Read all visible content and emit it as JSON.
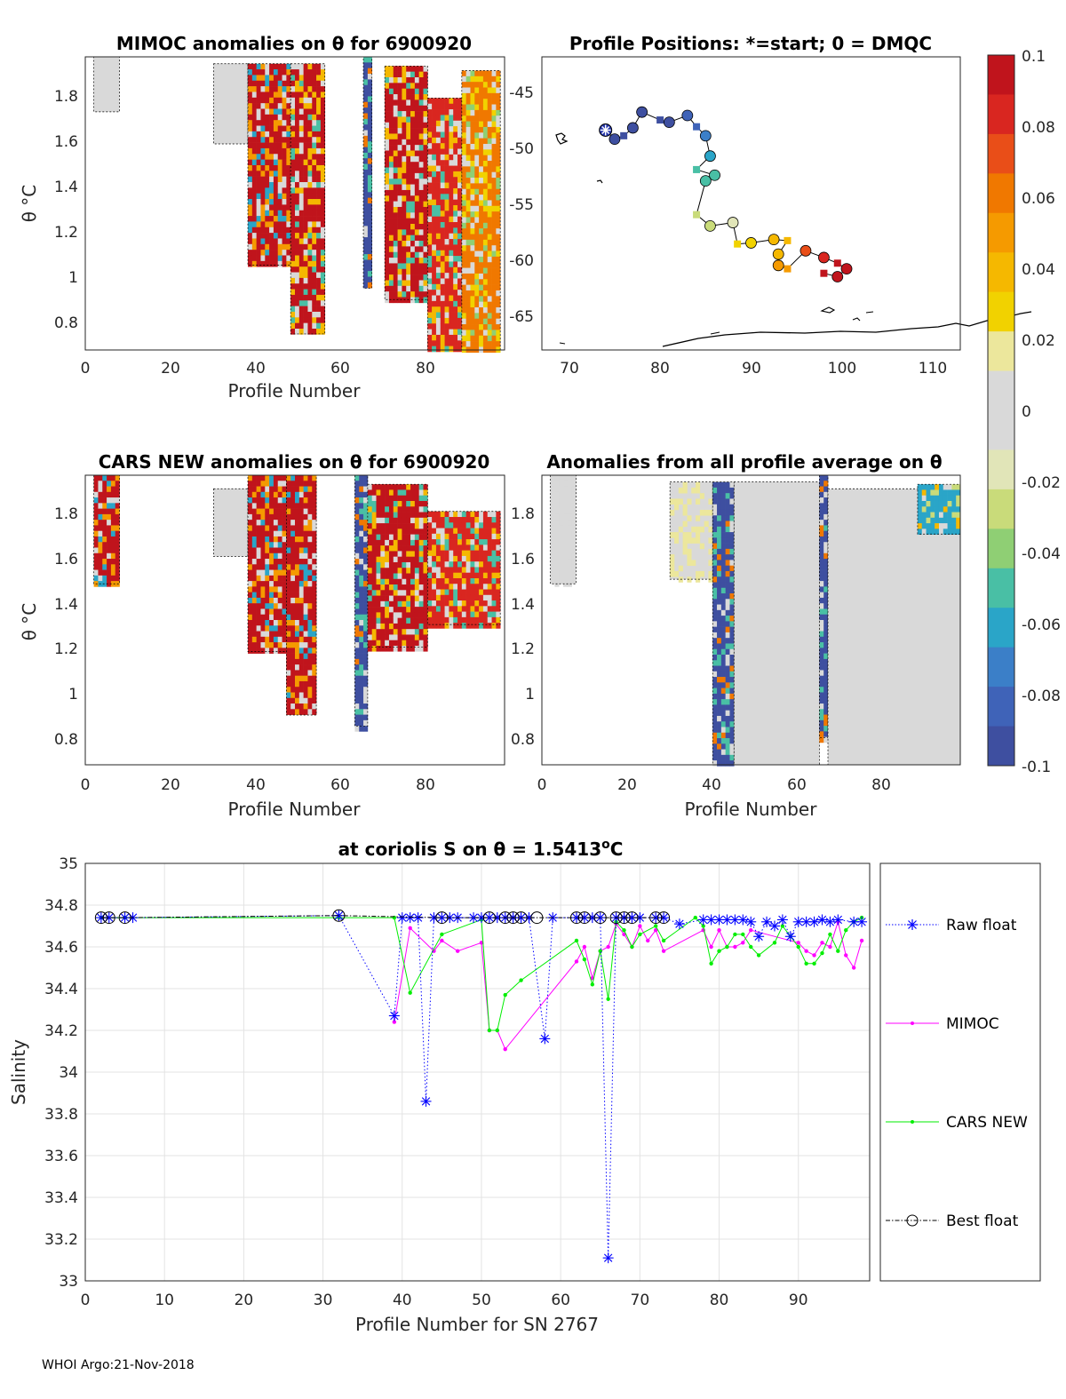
{
  "footer": "WHOI Argo:21-Nov-2018",
  "colorbar": {
    "ticks": [
      "0.1",
      "0.08",
      "0.06",
      "0.04",
      "0.02",
      "0",
      "-0.02",
      "-0.04",
      "-0.06",
      "-0.08",
      "-0.1"
    ],
    "colors": [
      "#3e4fa0",
      "#3f63b8",
      "#3b7fc8",
      "#2aa5c8",
      "#49bfa5",
      "#8fcf74",
      "#c9db7a",
      "#e1e5b8",
      "#d9d9d9",
      "#d9d9d9",
      "#ece79c",
      "#f1d200",
      "#f5b800",
      "#f59a00",
      "#f07800",
      "#e94e18",
      "#d92620",
      "#c0141c"
    ]
  },
  "panels": {
    "mimoc": {
      "title": "MIMOC anomalies on θ  for 6900920",
      "ylabel": "θ °C",
      "xlabel": "Profile Number",
      "xticks": [
        "0",
        "20",
        "40",
        "60",
        "80"
      ],
      "yticks": [
        "1.8",
        "1.6",
        "1.4",
        "1.2",
        "1",
        "0.8"
      ]
    },
    "positions": {
      "title": "Profile Positions: *=start; 0 = DMQC",
      "xticks": [
        "70",
        "80",
        "90",
        "100",
        "110"
      ],
      "yticks": [
        "-45",
        "-50",
        "-55",
        "-60",
        "-65"
      ]
    },
    "cars": {
      "title": "CARS NEW anomalies on θ for 6900920",
      "ylabel": "θ °C",
      "xlabel": "Profile Number",
      "xticks": [
        "0",
        "20",
        "40",
        "60",
        "80"
      ],
      "yticks": [
        "1.8",
        "1.6",
        "1.4",
        "1.2",
        "1",
        "0.8"
      ]
    },
    "allavg": {
      "title": "Anomalies from all profile average on θ",
      "xlabel": "Profile Number",
      "xticks": [
        "0",
        "20",
        "40",
        "60",
        "80"
      ],
      "yticks": [
        "1.8",
        "1.6",
        "1.4",
        "1.2",
        "1",
        "0.8"
      ]
    }
  },
  "chart_data": [
    {
      "type": "heatmap",
      "title": "MIMOC anomalies on θ  for 6900920",
      "xlabel": "Profile Number",
      "ylabel": "θ °C",
      "xlim": [
        0,
        98
      ],
      "ylim": [
        0.68,
        1.96
      ],
      "colorbar_range": [
        -0.1,
        0.1
      ],
      "bands": [
        {
          "x": [
            2,
            8
          ],
          "top": 1.96,
          "bottom": 1.72,
          "value": 0.0
        },
        {
          "x": [
            30,
            38
          ],
          "top": 1.93,
          "bottom": 1.58,
          "value": 0.0
        },
        {
          "x": [
            38,
            48
          ],
          "top": 1.93,
          "bottom": 1.05,
          "value": 0.1
        },
        {
          "x": [
            48,
            56
          ],
          "top": 1.93,
          "bottom": 0.75,
          "value": 0.09
        },
        {
          "x": [
            65,
            67
          ],
          "top": 1.96,
          "bottom": 0.95,
          "value": -0.1
        },
        {
          "x": [
            70,
            80
          ],
          "top": 1.92,
          "bottom": 0.9,
          "value": 0.09
        },
        {
          "x": [
            80,
            88
          ],
          "top": 1.78,
          "bottom": 0.68,
          "value": 0.08
        },
        {
          "x": [
            88,
            97
          ],
          "top": 1.9,
          "bottom": 0.68,
          "value": 0.06
        }
      ]
    },
    {
      "type": "scatter",
      "title": "Profile Positions: *=start; 0 = DMQC",
      "xlim": [
        67,
        113
      ],
      "ylim": [
        -68,
        -42
      ],
      "start": {
        "lon": 74,
        "lat": -48.5
      },
      "points": [
        {
          "lon": 74,
          "lat": -48.5,
          "v": -0.1
        },
        {
          "lon": 75,
          "lat": -49.3,
          "v": -0.1
        },
        {
          "lon": 76,
          "lat": -49.0,
          "v": -0.1
        },
        {
          "lon": 77,
          "lat": -48.3,
          "v": -0.09
        },
        {
          "lon": 78,
          "lat": -46.9,
          "v": -0.09
        },
        {
          "lon": 80,
          "lat": -47.6,
          "v": -0.09
        },
        {
          "lon": 81,
          "lat": -47.8,
          "v": -0.09
        },
        {
          "lon": 83,
          "lat": -47.2,
          "v": -0.08
        },
        {
          "lon": 84,
          "lat": -48.2,
          "v": -0.08
        },
        {
          "lon": 85,
          "lat": -49.0,
          "v": -0.07
        },
        {
          "lon": 85.5,
          "lat": -50.8,
          "v": -0.06
        },
        {
          "lon": 84,
          "lat": -52.0,
          "v": -0.05
        },
        {
          "lon": 86,
          "lat": -52.5,
          "v": -0.05
        },
        {
          "lon": 85,
          "lat": -53.0,
          "v": -0.05
        },
        {
          "lon": 84,
          "lat": -56.0,
          "v": -0.03
        },
        {
          "lon": 85.5,
          "lat": -57.0,
          "v": -0.025
        },
        {
          "lon": 88,
          "lat": -56.7,
          "v": -0.02
        },
        {
          "lon": 88.5,
          "lat": -58.6,
          "v": 0.03
        },
        {
          "lon": 90,
          "lat": -58.5,
          "v": 0.03
        },
        {
          "lon": 92.5,
          "lat": -58.2,
          "v": 0.04
        },
        {
          "lon": 94,
          "lat": -58.3,
          "v": 0.04
        },
        {
          "lon": 93,
          "lat": -59.5,
          "v": 0.04
        },
        {
          "lon": 93,
          "lat": -60.5,
          "v": 0.05
        },
        {
          "lon": 94,
          "lat": -60.8,
          "v": 0.05
        },
        {
          "lon": 96,
          "lat": -59.2,
          "v": 0.07
        },
        {
          "lon": 98,
          "lat": -59.8,
          "v": 0.08
        },
        {
          "lon": 99.5,
          "lat": -60.3,
          "v": 0.09
        },
        {
          "lon": 100.5,
          "lat": -60.8,
          "v": 0.1
        },
        {
          "lon": 99.5,
          "lat": -61.5,
          "v": 0.1
        },
        {
          "lon": 98,
          "lat": -61.2,
          "v": 0.1
        }
      ]
    },
    {
      "type": "heatmap",
      "title": "CARS NEW anomalies on θ for 6900920",
      "xlabel": "Profile Number",
      "ylabel": "θ °C",
      "xlim": [
        0,
        98
      ],
      "ylim": [
        0.68,
        1.96
      ],
      "colorbar_range": [
        -0.1,
        0.1
      ],
      "bands": [
        {
          "x": [
            2,
            8
          ],
          "top": 1.96,
          "bottom": 1.48,
          "value": 0.1
        },
        {
          "x": [
            30,
            38
          ],
          "top": 1.9,
          "bottom": 1.6,
          "value": 0.0
        },
        {
          "x": [
            38,
            47
          ],
          "top": 1.96,
          "bottom": 1.18,
          "value": 0.1
        },
        {
          "x": [
            47,
            54
          ],
          "top": 1.96,
          "bottom": 0.9,
          "value": 0.1
        },
        {
          "x": [
            63,
            66
          ],
          "top": 1.96,
          "bottom": 0.85,
          "value": -0.1
        },
        {
          "x": [
            66,
            80
          ],
          "top": 1.92,
          "bottom": 1.2,
          "value": 0.09
        },
        {
          "x": [
            80,
            97
          ],
          "top": 1.8,
          "bottom": 1.3,
          "value": 0.08
        }
      ]
    },
    {
      "type": "heatmap",
      "title": "Anomalies from all profile average on θ",
      "xlabel": "Profile Number",
      "xlim": [
        0,
        98
      ],
      "ylim": [
        0.68,
        1.96
      ],
      "colorbar_range": [
        -0.1,
        0.1
      ],
      "bands": [
        {
          "x": [
            2,
            8
          ],
          "top": 1.96,
          "bottom": 1.48,
          "value": 0.01
        },
        {
          "x": [
            30,
            40
          ],
          "top": 1.93,
          "bottom": 1.5,
          "value": 0.02
        },
        {
          "x": [
            40,
            45
          ],
          "top": 1.93,
          "bottom": 0.68,
          "value": -0.1
        },
        {
          "x": [
            45,
            65
          ],
          "top": 1.93,
          "bottom": 0.68,
          "value": 0.0
        },
        {
          "x": [
            65,
            67
          ],
          "top": 1.96,
          "bottom": 0.8,
          "value": -0.1
        },
        {
          "x": [
            67,
            98
          ],
          "top": 1.9,
          "bottom": 0.68,
          "value": 0.0
        },
        {
          "x": [
            88,
            98
          ],
          "top": 1.92,
          "bottom": 1.7,
          "value": -0.06
        }
      ]
    },
    {
      "type": "line",
      "title": "at coriolis S on θ = 1.5413°C",
      "title_prefix": "at coriolis S on θ = 1.5413",
      "title_sup": "o",
      "title_suffix": "C",
      "xlabel": "Profile Number for SN 2767",
      "ylabel": "Salinity",
      "xlim": [
        0,
        99
      ],
      "ylim": [
        33,
        35
      ],
      "xticks": [
        "0",
        "10",
        "20",
        "30",
        "40",
        "50",
        "60",
        "70",
        "80",
        "90"
      ],
      "yticks": [
        "35",
        "34.8",
        "34.6",
        "34.4",
        "34.2",
        "34",
        "33.8",
        "33.6",
        "33.4",
        "33.2",
        "33"
      ],
      "legend": [
        "Raw float",
        "MIMOC",
        "CARS NEW",
        "Best float"
      ],
      "series": [
        {
          "name": "Raw float",
          "color": "#0000ff",
          "x": [
            2,
            3,
            5,
            6,
            32,
            39,
            40,
            41,
            42,
            43,
            44,
            45,
            46,
            47,
            49,
            50,
            51,
            52,
            53,
            54,
            55,
            56,
            58,
            59,
            62,
            63,
            64,
            65,
            66,
            67,
            68,
            69,
            70,
            72,
            73,
            75,
            78,
            79,
            80,
            81,
            82,
            83,
            84,
            85,
            86,
            87,
            88,
            89,
            90,
            91,
            92,
            93,
            94,
            95,
            97,
            98
          ],
          "y": [
            34.74,
            34.74,
            34.74,
            34.74,
            34.75,
            34.27,
            34.74,
            34.74,
            34.74,
            33.86,
            34.74,
            34.74,
            34.74,
            34.74,
            34.74,
            34.74,
            34.74,
            34.74,
            34.74,
            34.74,
            34.74,
            34.74,
            34.16,
            34.74,
            34.74,
            34.74,
            34.74,
            34.74,
            33.11,
            34.74,
            34.74,
            34.74,
            34.74,
            34.74,
            34.74,
            34.71,
            34.73,
            34.73,
            34.73,
            34.73,
            34.73,
            34.73,
            34.72,
            34.65,
            34.72,
            34.7,
            34.73,
            34.65,
            34.72,
            34.72,
            34.72,
            34.73,
            34.72,
            34.73,
            34.72,
            34.72
          ]
        },
        {
          "name": "MIMOC",
          "color": "#ff00ff",
          "x": [
            39,
            41,
            44,
            45,
            47,
            50,
            51,
            52,
            53,
            62,
            63,
            64,
            65,
            66,
            67,
            68,
            69,
            70,
            71,
            72,
            73,
            78,
            79,
            80,
            81,
            82,
            83,
            84,
            90,
            91,
            92,
            93,
            94,
            95,
            96,
            97,
            98
          ],
          "y": [
            34.24,
            34.69,
            34.58,
            34.63,
            34.58,
            34.62,
            34.2,
            34.2,
            34.11,
            34.53,
            34.6,
            34.45,
            34.58,
            34.6,
            34.71,
            34.66,
            34.6,
            34.7,
            34.63,
            34.68,
            34.58,
            34.68,
            34.6,
            34.68,
            34.6,
            34.6,
            34.62,
            34.68,
            34.62,
            34.58,
            34.56,
            34.62,
            34.6,
            34.72,
            34.56,
            34.5,
            34.63
          ]
        },
        {
          "name": "CARS NEW",
          "color": "#00ee00",
          "x": [
            2,
            5,
            32,
            39,
            41,
            45,
            50,
            51,
            52,
            53,
            55,
            62,
            63,
            64,
            65,
            66,
            67,
            68,
            69,
            70,
            72,
            73,
            77,
            78,
            79,
            80,
            81,
            82,
            83,
            84,
            85,
            87,
            88,
            89,
            90,
            91,
            92,
            93,
            94,
            95,
            96,
            97,
            98
          ],
          "y": [
            34.74,
            34.74,
            34.74,
            34.74,
            34.38,
            34.66,
            34.73,
            34.2,
            34.2,
            34.37,
            34.44,
            34.63,
            34.54,
            34.42,
            34.58,
            34.35,
            34.72,
            34.68,
            34.6,
            34.66,
            34.7,
            34.63,
            34.74,
            34.7,
            34.52,
            34.58,
            34.6,
            34.66,
            34.66,
            34.6,
            34.56,
            34.62,
            34.7,
            34.65,
            34.6,
            34.52,
            34.52,
            34.57,
            34.66,
            34.58,
            34.68,
            34.72,
            34.74
          ]
        },
        {
          "name": "Best float",
          "color": "#000000",
          "x": [
            2,
            3,
            5,
            32,
            45,
            51,
            53,
            54,
            55,
            57,
            62,
            63,
            65,
            67,
            68,
            69,
            72,
            73
          ],
          "y": [
            34.74,
            34.74,
            34.74,
            34.75,
            34.74,
            34.74,
            34.74,
            34.74,
            34.74,
            34.74,
            34.74,
            34.74,
            34.74,
            34.74,
            34.74,
            34.74,
            34.74,
            34.74
          ]
        }
      ]
    }
  ]
}
